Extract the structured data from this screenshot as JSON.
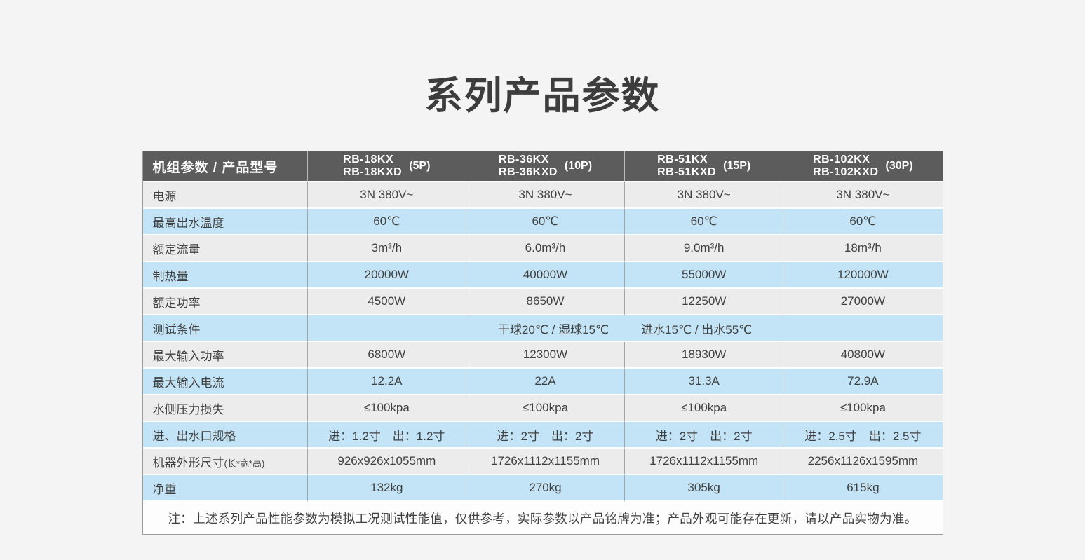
{
  "page": {
    "title": "系列产品参数"
  },
  "colors": {
    "page_background": "#f4f4f5",
    "header_background": "#5d5c5c",
    "header_text": "#ffffff",
    "row_gray": "#ececec",
    "row_blue": "#c2e4f6",
    "body_text": "#404040",
    "cell_border": "#a3a3a3"
  },
  "table": {
    "header": {
      "label": "机组参数 / 产品型号",
      "models": [
        {
          "line1": "RB-18KX",
          "line2": "RB-18KXD",
          "hp": "(5P)"
        },
        {
          "line1": "RB-36KX",
          "line2": "RB-36KXD",
          "hp": "(10P)"
        },
        {
          "line1": "RB-51KX",
          "line2": "RB-51KXD",
          "hp": "(15P)"
        },
        {
          "line1": "RB-102KX",
          "line2": "RB-102KXD",
          "hp": "(30P)"
        }
      ]
    },
    "rows": [
      {
        "label": "电源",
        "values": [
          "3N  380V~",
          "3N  380V~",
          "3N  380V~",
          "3N  380V~"
        ]
      },
      {
        "label": "最高出水温度",
        "values": [
          "60℃",
          "60℃",
          "60℃",
          "60℃"
        ]
      },
      {
        "label": "额定流量",
        "values": [
          "3m³/h",
          "6.0m³/h",
          "9.0m³/h",
          "18m³/h"
        ]
      },
      {
        "label": "制热量",
        "values": [
          "20000W",
          "40000W",
          "55000W",
          "120000W"
        ]
      },
      {
        "label": "额定功率",
        "values": [
          "4500W",
          "8650W",
          "12250W",
          "27000W"
        ]
      },
      {
        "label": "测试条件",
        "span_parts": [
          "干球20℃ / 湿球15℃",
          "进水15℃ / 出水55℃"
        ]
      },
      {
        "label": "最大输入功率",
        "values": [
          "6800W",
          "12300W",
          "18930W",
          "40800W"
        ]
      },
      {
        "label": "最大输入电流",
        "values": [
          "12.2A",
          "22A",
          "31.3A",
          "72.9A"
        ]
      },
      {
        "label": "水侧压力损失",
        "values": [
          "≤100kpa",
          "≤100kpa",
          "≤100kpa",
          "≤100kpa"
        ]
      },
      {
        "label": "进、出水口规格",
        "values": [
          "进：1.2寸　出：1.2寸",
          "进：2寸　出：2寸",
          "进：2寸　出：2寸",
          "进：2.5寸　出：2.5寸"
        ]
      },
      {
        "label": "机器外形尺寸",
        "label_suffix": "(长*宽*高)",
        "values": [
          "926x926x1055mm",
          "1726x1112x1155mm",
          "1726x1112x1155mm",
          "2256x1126x1595mm"
        ]
      },
      {
        "label": "净重",
        "values": [
          "132kg",
          "270kg",
          "305kg",
          "615kg"
        ]
      }
    ],
    "note": "注：上述系列产品性能参数为模拟工况测试性能值，仅供参考，实际参数以产品铭牌为准；产品外观可能存在更新，请以产品实物为准。"
  }
}
